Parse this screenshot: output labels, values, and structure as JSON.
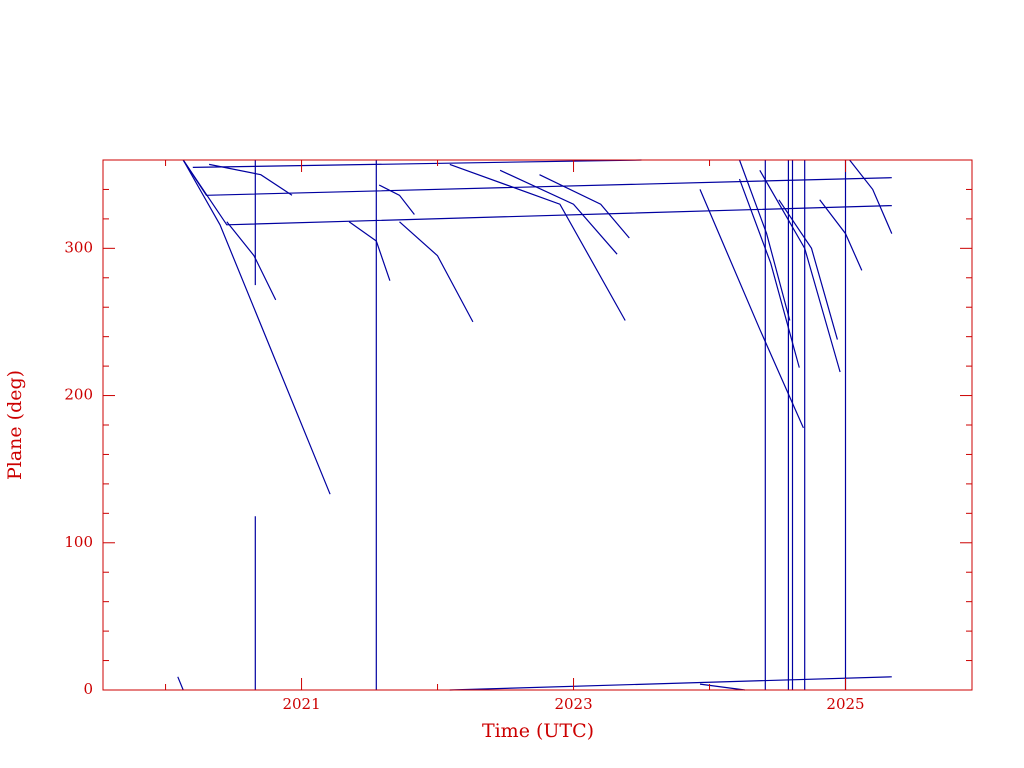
{
  "chart_data": {
    "type": "line",
    "x_label": "Time (UTC)",
    "y_label": "Plane (deg)",
    "color": "#0000a0",
    "axis_color": "#cc0000",
    "xlim": [
      2019.54,
      2025.93
    ],
    "ylim": [
      0,
      360
    ],
    "xticks": [
      2021,
      2023,
      2025
    ],
    "yticks": [
      0,
      100,
      200,
      300
    ],
    "xminorticks": [
      2020,
      2022,
      2024
    ],
    "yminorticks": [
      20,
      40,
      60,
      80,
      120,
      140,
      160,
      180,
      220,
      240,
      260,
      280,
      320,
      340
    ],
    "series": [
      {
        "x": [
          2020.13,
          2020.4,
          2021.21
        ],
        "values": [
          360,
          316,
          133
        ]
      },
      {
        "x": [
          2020.13,
          2020.45,
          2025.34
        ],
        "values": [
          360,
          316,
          329
        ]
      },
      {
        "x": [
          2020.13,
          2020.3,
          2025.34
        ],
        "values": [
          360,
          336,
          348
        ]
      },
      {
        "x": [
          2020.2,
          2023.5
        ],
        "values": [
          355,
          360
        ]
      },
      {
        "x": [
          2020.66,
          2020.66
        ],
        "values": [
          275,
          360
        ]
      },
      {
        "x": [
          2020.66,
          2020.66
        ],
        "values": [
          0,
          118
        ]
      },
      {
        "x": [
          2021.55,
          2021.55
        ],
        "values": [
          0,
          360
        ]
      },
      {
        "x": [
          2024.41,
          2024.41
        ],
        "values": [
          0,
          360
        ]
      },
      {
        "x": [
          2024.58,
          2024.58
        ],
        "values": [
          0,
          360
        ]
      },
      {
        "x": [
          2024.61,
          2024.61
        ],
        "values": [
          0,
          360
        ]
      },
      {
        "x": [
          2024.7,
          2024.7
        ],
        "values": [
          0,
          360
        ]
      },
      {
        "x": [
          2025.0,
          2025.0
        ],
        "values": [
          0,
          360
        ]
      },
      {
        "x": [
          2020.32,
          2020.7,
          2020.93
        ],
        "values": [
          357,
          350,
          336
        ]
      },
      {
        "x": [
          2020.45,
          2020.65,
          2020.81
        ],
        "values": [
          318,
          295,
          265
        ]
      },
      {
        "x": [
          2021.35,
          2021.55,
          2021.65
        ],
        "values": [
          318,
          305,
          278
        ]
      },
      {
        "x": [
          2021.57,
          2021.72,
          2021.83
        ],
        "values": [
          343,
          336,
          323
        ]
      },
      {
        "x": [
          2021.72,
          2022.0,
          2022.26
        ],
        "values": [
          318,
          295,
          250
        ]
      },
      {
        "x": [
          2022.09,
          2022.9,
          2023.38
        ],
        "values": [
          357,
          330,
          251
        ]
      },
      {
        "x": [
          2022.46,
          2023.0,
          2023.32
        ],
        "values": [
          353,
          330,
          296
        ]
      },
      {
        "x": [
          2022.75,
          2023.2,
          2023.41
        ],
        "values": [
          350,
          330,
          307
        ]
      },
      {
        "x": [
          2023.93,
          2024.37,
          2024.69
        ],
        "values": [
          340,
          245,
          178
        ]
      },
      {
        "x": [
          2024.22,
          2024.45,
          2024.66
        ],
        "values": [
          347,
          290,
          219
        ]
      },
      {
        "x": [
          2024.37,
          2024.7,
          2024.96
        ],
        "values": [
          353,
          300,
          216
        ]
      },
      {
        "x": [
          2024.51,
          2024.75,
          2024.94
        ],
        "values": [
          333,
          300,
          238
        ]
      },
      {
        "x": [
          2024.22,
          2024.42,
          2024.59
        ],
        "values": [
          360,
          310,
          251
        ]
      },
      {
        "x": [
          2025.03,
          2025.2,
          2025.34
        ],
        "values": [
          360,
          340,
          310
        ]
      },
      {
        "x": [
          2024.81,
          2025.0,
          2025.12
        ],
        "values": [
          333,
          310,
          285
        ]
      },
      {
        "x": [
          2022.09,
          2025.34
        ],
        "values": [
          0,
          9
        ]
      },
      {
        "x": [
          2020.09,
          2020.13
        ],
        "values": [
          9,
          0
        ]
      },
      {
        "x": [
          2023.93,
          2024.26
        ],
        "values": [
          4,
          0
        ]
      }
    ]
  }
}
